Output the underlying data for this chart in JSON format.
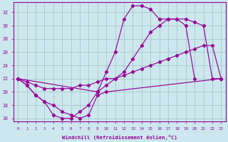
{
  "xlabel": "Windchill (Refroidissement éolien,°C)",
  "bg_color": "#cce8ee",
  "line_color": "#990099",
  "grid_color": "#aacccc",
  "x_ticks": [
    0,
    1,
    2,
    3,
    4,
    5,
    6,
    7,
    8,
    9,
    10,
    11,
    12,
    13,
    14,
    15,
    16,
    17,
    18,
    19,
    20,
    21,
    22,
    23
  ],
  "y_ticks": [
    16,
    18,
    20,
    22,
    24,
    26,
    28,
    30,
    32
  ],
  "xlim": [
    -0.5,
    23.5
  ],
  "ylim": [
    15.5,
    33.5
  ],
  "line1_x": [
    0,
    1,
    2,
    3,
    4,
    5,
    6,
    7,
    8,
    9,
    10,
    11,
    12,
    13,
    14,
    15,
    16,
    17,
    18,
    19,
    20
  ],
  "line1_y": [
    22,
    21,
    19.5,
    18.5,
    16.5,
    16,
    16,
    17,
    18,
    20,
    23,
    26,
    31,
    33,
    33,
    32.5,
    31,
    31,
    31,
    30,
    22
  ],
  "line2_x": [
    0,
    1,
    2,
    3,
    4,
    5,
    6,
    7,
    8,
    9,
    10,
    11,
    12,
    13,
    14,
    15,
    16,
    17,
    18,
    19,
    20,
    21,
    22,
    23
  ],
  "line2_y": [
    22,
    21.5,
    21,
    20.5,
    20.5,
    20.5,
    20.5,
    21,
    21,
    21.5,
    22,
    22,
    22.5,
    23,
    23.5,
    24,
    24.5,
    25,
    25.5,
    26,
    26.5,
    27,
    27,
    22
  ],
  "line3_x": [
    0,
    9,
    10,
    11,
    12,
    13,
    14,
    15,
    16,
    17,
    18,
    19,
    20,
    21,
    22,
    23
  ],
  "line3_y": [
    22,
    20,
    21,
    22,
    23,
    25,
    27,
    29,
    30,
    31,
    31,
    31,
    30.5,
    30,
    22,
    22
  ],
  "line4_x": [
    0,
    1,
    2,
    3,
    4,
    5,
    6,
    7,
    8,
    9,
    10,
    23
  ],
  "line4_y": [
    22,
    21,
    19.5,
    18.5,
    18,
    17,
    16.5,
    16,
    16.5,
    19.5,
    20,
    22
  ]
}
